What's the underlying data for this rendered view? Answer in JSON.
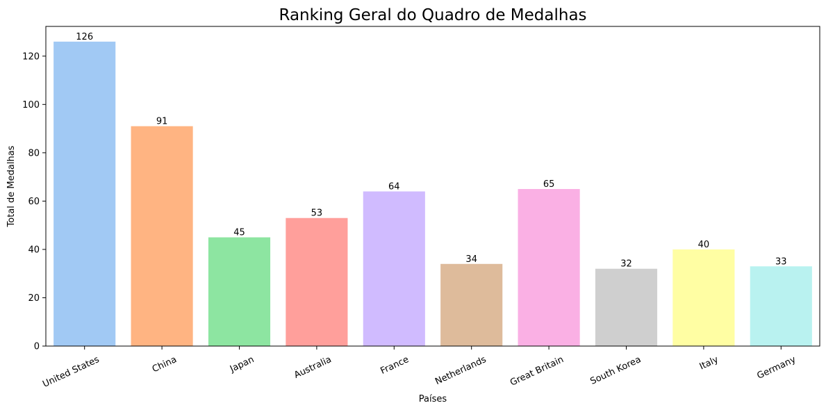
{
  "chart_data": {
    "type": "bar",
    "title": "Ranking Geral do Quadro de Medalhas",
    "xlabel": "Países",
    "ylabel": "Total de Medalhas",
    "categories": [
      "United States",
      "China",
      "Japan",
      "Australia",
      "France",
      "Netherlands",
      "Great Britain",
      "South Korea",
      "Italy",
      "Germany"
    ],
    "values": [
      126,
      91,
      45,
      53,
      64,
      34,
      65,
      32,
      40,
      33
    ],
    "value_labels": [
      "126",
      "91",
      "45",
      "53",
      "64",
      "34",
      "65",
      "32",
      "40",
      "33"
    ],
    "colors": [
      "#a1c9f4",
      "#ffb482",
      "#8de5a1",
      "#ff9f9b",
      "#d0bbff",
      "#debb9b",
      "#fab0e4",
      "#cfcfcf",
      "#fffea3",
      "#b9f2f0"
    ],
    "ylim": [
      0,
      132.3
    ],
    "yticks": [
      0,
      20,
      40,
      60,
      80,
      100,
      120
    ],
    "ytick_labels": [
      "0",
      "20",
      "40",
      "60",
      "80",
      "100",
      "120"
    ],
    "grid": false,
    "legend": "none"
  }
}
